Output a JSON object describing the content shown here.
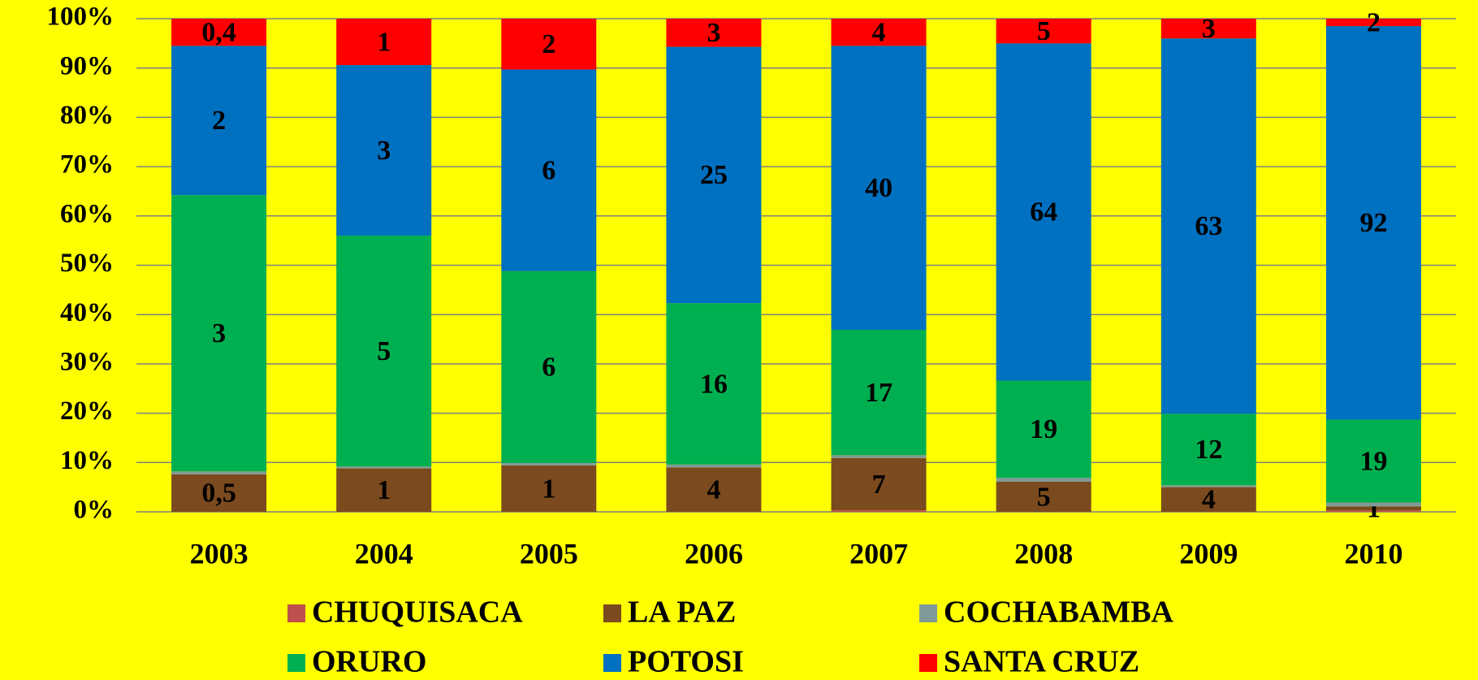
{
  "chart_data": {
    "type": "bar",
    "stacked": true,
    "categories": [
      "2003",
      "2004",
      "2005",
      "2006",
      "2007",
      "2008",
      "2009",
      "2010"
    ],
    "ylim": [
      0,
      100
    ],
    "yticks": [
      {
        "value": 0,
        "label": "0%"
      },
      {
        "value": 10,
        "label": "10%"
      },
      {
        "value": 20,
        "label": "20%"
      },
      {
        "value": 30,
        "label": "30%"
      },
      {
        "value": 40,
        "label": "40%"
      },
      {
        "value": 50,
        "label": "50%"
      },
      {
        "value": 60,
        "label": "60%"
      },
      {
        "value": 70,
        "label": "70%"
      },
      {
        "value": 80,
        "label": "80%"
      },
      {
        "value": 90,
        "label": "90%"
      },
      {
        "value": 100,
        "label": "100%"
      }
    ],
    "grid": true,
    "series": [
      {
        "name": "CHUQUISACA",
        "color": "#c0504d",
        "values": [
          0,
          0,
          0,
          0,
          0.3,
          0,
          0,
          0.3
        ],
        "data_labels": [
          null,
          null,
          null,
          null,
          null,
          null,
          null,
          null
        ]
      },
      {
        "name": "LA PAZ",
        "color": "#7b4a1e",
        "values": [
          7.6,
          8.8,
          9.4,
          9.0,
          10.6,
          6.1,
          5.0,
          0.8
        ],
        "data_labels": [
          "0,5",
          "1",
          "1",
          "4",
          "7",
          "5",
          "4",
          "1"
        ]
      },
      {
        "name": "COCHABAMBA",
        "color": "#7f9a98",
        "values": [
          0.6,
          0.4,
          0.5,
          0.6,
          0.6,
          0.8,
          0.4,
          0.8
        ],
        "data_labels": [
          null,
          null,
          null,
          null,
          null,
          null,
          null,
          null
        ]
      },
      {
        "name": "ORURO",
        "color": "#00b050",
        "values": [
          56.0,
          46.8,
          38.9,
          32.7,
          25.4,
          19.7,
          14.5,
          16.8
        ],
        "data_labels": [
          "3",
          "5",
          "6",
          "16",
          "17",
          "19",
          "12",
          "19"
        ]
      },
      {
        "name": "POTOSI",
        "color": "#0070c0",
        "values": [
          30.3,
          34.6,
          40.9,
          52.0,
          57.6,
          68.4,
          76.1,
          79.8
        ],
        "data_labels": [
          "2",
          "3",
          "6",
          "25",
          "40",
          "64",
          "63",
          "92"
        ]
      },
      {
        "name": "SANTA CRUZ",
        "color": "#ff0000",
        "values": [
          5.5,
          9.4,
          10.3,
          5.7,
          5.5,
          5.0,
          4.0,
          1.5
        ],
        "data_labels": [
          "0,4",
          "1",
          "2",
          "3",
          "4",
          "5",
          "3",
          "2"
        ]
      }
    ]
  }
}
